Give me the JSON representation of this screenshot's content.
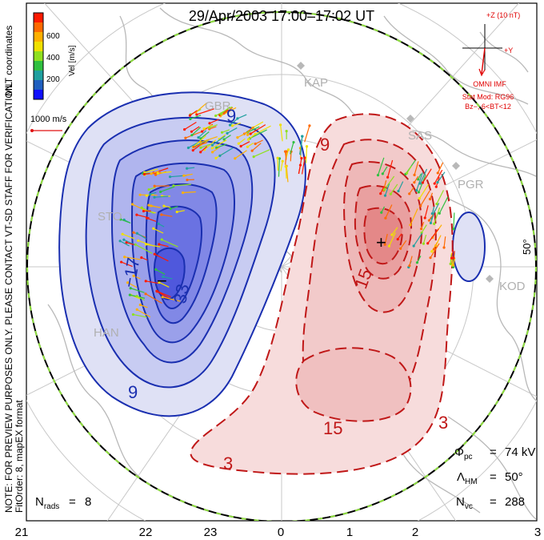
{
  "title": "29/Apr/2003 17:00–17:02 UT",
  "colorbar": {
    "ticks": [
      "600",
      "400",
      "200"
    ],
    "label": "Vel [m/s]",
    "colors": [
      "#ff1a00",
      "#ff6a00",
      "#ffb000",
      "#f0e000",
      "#90e020",
      "#30c040",
      "#20a0a0",
      "#2060c0",
      "#1010ff"
    ]
  },
  "coord_label": "MLT coordinates",
  "velocity_scale_label": "1000 m/s",
  "notice": "NOTE: FOR PREVIEW PURPOSES ONLY. PLEASE CONTACT VT-SD STAFF FOR VERIFICATION.",
  "fit_order": "FitOrder: 8, mapEX format",
  "imf": {
    "z_label": "+Z (10 nT)",
    "y_label": "+Y",
    "source": "OMNI IMF",
    "model_line1": "Stat Mod: RG96",
    "model_line2": "Bz−, 6<BT<12"
  },
  "radars": [
    "KAP",
    "SAS",
    "PGR",
    "KOD",
    "GBR",
    "STO",
    "HAN"
  ],
  "contours": {
    "negative_labels": [
      "9",
      "33",
      "9",
      "−17"
    ],
    "positive_labels": [
      "15",
      "15",
      "3",
      "9",
      "3"
    ],
    "min_marker": "−",
    "max_marker": "+"
  },
  "latitude_label": "50°",
  "stats": {
    "phi_pc": "74 kV",
    "lambda_hm": "50°",
    "n_vc": "288",
    "n_rads": "8"
  },
  "mlt_labels": [
    "21",
    "22",
    "23",
    "0",
    "1",
    "2",
    "3"
  ]
}
